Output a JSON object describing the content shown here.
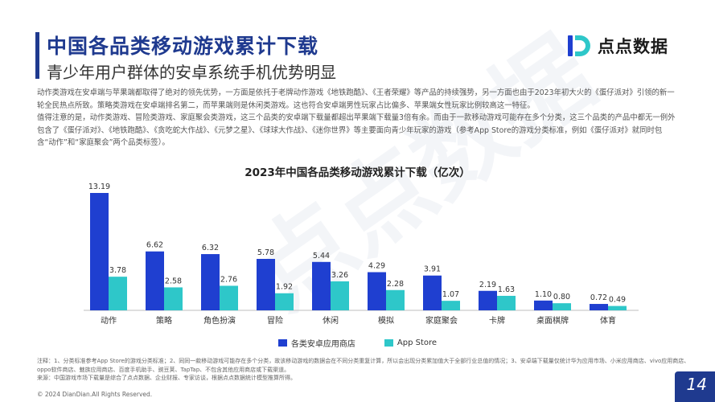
{
  "header": {
    "title": "中国各品类移动游戏累计下载",
    "subtitle": "青少年用户群体的安卓系统手机优势明显"
  },
  "logo": {
    "text": "点点数据"
  },
  "watermark": {
    "text": "点点数据"
  },
  "body": {
    "paragraphs": [
      "动作类游戏在安卓端与苹果端都取得了绝对的领先优势，一方面是依托于老牌动作游戏《地铁跑酷》、《王者荣耀》等产品的持续强势，另一方面也由于2023年初大火的《蛋仔派对》引领的新一轮全民热点所致。策略类游戏在安卓端排名第二，而苹果端则是休闲类游戏。这也符合安卓端男性玩家占比偏多、苹果端女性玩家比例较高这一特征。",
      "值得注意的是，动作类游戏、冒险类游戏、家庭聚会类游戏，这三个品类的安卓端下载量都超出苹果端下载量3倍有余。而由于一款移动游戏可能存在多个分类，这三个品类的产品中都无一例外包含了《蛋仔派对》、《地铁跑酷》、《贪吃蛇大作战》、《元梦之星》、《球球大作战》、《迷你世界》等主要面向青少年玩家的游戏（参考App Store的游戏分类标准，例如《蛋仔派对》就同时包含“动作”和“家庭聚会”两个品类标签）。"
    ]
  },
  "chart_data": {
    "type": "bar",
    "title": "2023年中国各品类移动游戏累计下载（亿次）",
    "categories": [
      "动作",
      "策略",
      "角色扮演",
      "冒险",
      "休闲",
      "模拟",
      "家庭聚会",
      "卡牌",
      "桌面棋牌",
      "体育"
    ],
    "series": [
      {
        "name": "各类安卓应用商店",
        "color": "#1f3fd0",
        "values": [
          13.19,
          6.62,
          6.32,
          5.78,
          5.44,
          4.29,
          3.91,
          2.19,
          1.1,
          0.72
        ]
      },
      {
        "name": "App Store",
        "color": "#2ec7c9",
        "values": [
          3.78,
          2.58,
          2.76,
          1.92,
          3.26,
          2.28,
          1.07,
          1.63,
          0.8,
          0.49
        ]
      }
    ],
    "value_labels": [
      [
        "13.19",
        "6.62",
        "6.32",
        "5.78",
        "5.44",
        "4.29",
        "3.91",
        "2.19",
        "1.10",
        "0.72"
      ],
      [
        "3.78",
        "2.58",
        "2.76",
        "1.92",
        "3.26",
        "2.28",
        "1.07",
        "1.63",
        "0.80",
        "0.49"
      ]
    ],
    "ylim": [
      0,
      13.19
    ],
    "grid": false,
    "legend": "bottom"
  },
  "notes": {
    "line1": "注释：1、分类标准参考App Store的游戏分类标准；2、同同一款移动游戏可能存在多个分类，故该移动游戏的数据会在不同分类重复计算，所以会出现分类累加值大于全部行业总值的情况；3、安卓端下载量仅统计华为应用市场、小米应用商店、vivo应用商店、oppo软件商店、魅族应用商店、百度手机助手、豌豆荚、TapTap、不包含其他应用商店或下载渠道。",
    "line2": "来源：中国游戏市场下载量是综合了点点数据、企业财报、专家访谈，根据点点数据统计模型推算所得。"
  },
  "footer": {
    "copyright": "© 2024 DianDian.All Rights Reserved.",
    "page_number": "14"
  }
}
